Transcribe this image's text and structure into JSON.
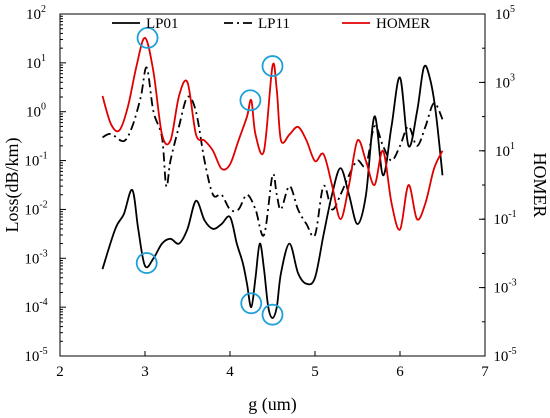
{
  "chart_data": {
    "type": "line",
    "xlabel": "g (um)",
    "ylabel": "Loss(dB/km)",
    "ylabel_right": "HOMER",
    "x_ticks": [
      "2",
      "3",
      "4",
      "5",
      "6",
      "7"
    ],
    "xlim": [
      2,
      7
    ],
    "ylim_log10": [
      -5,
      2
    ],
    "y2lim_log10": [
      -5,
      5
    ],
    "y_log_scale": true,
    "y_tick_base": "10",
    "y_tick_exponents": [
      "-5",
      "-4",
      "-3",
      "-2",
      "-1",
      "0",
      "1",
      "2"
    ],
    "y2_tick_exponents": [
      "-5",
      "-3",
      "-1",
      "1",
      "3",
      "5"
    ],
    "legend": {
      "placement": "top",
      "entries": [
        {
          "label": "LP01",
          "color": "#000000",
          "style": "solid"
        },
        {
          "label": "LP11",
          "color": "#000000",
          "style": "dash-dot"
        },
        {
          "label": "HOMER",
          "color": "#e00000",
          "style": "solid"
        }
      ]
    },
    "series": [
      {
        "name": "LP01",
        "axis": "left",
        "color": "#000000",
        "style": "solid",
        "x": [
          2.5,
          2.65,
          2.75,
          2.85,
          2.92,
          3.0,
          3.1,
          3.2,
          3.3,
          3.4,
          3.5,
          3.6,
          3.7,
          3.8,
          3.9,
          4.0,
          4.08,
          4.15,
          4.2,
          4.25,
          4.3,
          4.35,
          4.4,
          4.45,
          4.5,
          4.55,
          4.6,
          4.7,
          4.8,
          4.9,
          5.0,
          5.1,
          5.2,
          5.3,
          5.4,
          5.5,
          5.6,
          5.7,
          5.8,
          5.9,
          6.0,
          6.1,
          6.2,
          6.28,
          6.35,
          6.42,
          6.5
        ],
        "y": [
          0.0006,
          0.004,
          0.008,
          0.025,
          0.004,
          0.0007,
          0.001,
          0.002,
          0.0025,
          0.002,
          0.004,
          0.015,
          0.006,
          0.004,
          0.005,
          0.007,
          0.002,
          0.0008,
          0.0003,
          0.0001,
          0.0004,
          0.002,
          0.0006,
          0.0001,
          6e-05,
          0.0001,
          0.0005,
          0.002,
          0.0005,
          0.0003,
          0.0004,
          0.003,
          0.02,
          0.07,
          0.02,
          0.005,
          0.02,
          0.8,
          0.05,
          0.5,
          5.0,
          0.2,
          1.0,
          8.0,
          5.0,
          1.0,
          0.05
        ]
      },
      {
        "name": "LP11",
        "axis": "left",
        "color": "#000000",
        "style": "dash-dot",
        "x": [
          2.5,
          2.6,
          2.75,
          2.85,
          2.95,
          3.02,
          3.1,
          3.2,
          3.25,
          3.3,
          3.4,
          3.5,
          3.6,
          3.7,
          3.8,
          3.9,
          4.0,
          4.1,
          4.2,
          4.3,
          4.4,
          4.5,
          4.55,
          4.6,
          4.7,
          4.8,
          4.9,
          5.0,
          5.1,
          5.2,
          5.3,
          5.4,
          5.5,
          5.6,
          5.7,
          5.8,
          5.9,
          6.0,
          6.1,
          6.2,
          6.3,
          6.4,
          6.5
        ],
        "y": [
          0.3,
          0.35,
          0.25,
          0.5,
          2.0,
          8.0,
          1.0,
          0.3,
          0.03,
          0.1,
          0.5,
          2.0,
          1.0,
          0.1,
          0.02,
          0.02,
          0.01,
          0.01,
          0.02,
          0.01,
          0.003,
          0.05,
          0.02,
          0.01,
          0.03,
          0.01,
          0.005,
          0.003,
          0.03,
          0.01,
          0.02,
          0.05,
          0.1,
          0.08,
          0.5,
          0.2,
          0.1,
          0.2,
          0.5,
          0.2,
          0.5,
          1.5,
          0.7
        ]
      },
      {
        "name": "HOMER",
        "axis": "right",
        "color": "#e00000",
        "style": "solid",
        "x": [
          2.5,
          2.6,
          2.7,
          2.8,
          2.9,
          3.0,
          3.1,
          3.2,
          3.3,
          3.4,
          3.5,
          3.6,
          3.7,
          3.8,
          3.9,
          4.0,
          4.1,
          4.2,
          4.25,
          4.3,
          4.4,
          4.5,
          4.55,
          4.6,
          4.7,
          4.8,
          4.9,
          5.0,
          5.1,
          5.2,
          5.3,
          5.4,
          5.5,
          5.6,
          5.7,
          5.8,
          5.9,
          6.0,
          6.1,
          6.2,
          6.3,
          6.4,
          6.5
        ],
        "y": [
          400,
          60,
          40,
          200,
          3000,
          20000,
          2000,
          30,
          20,
          400,
          1000,
          30,
          20,
          10,
          3,
          4,
          20,
          100,
          300,
          30,
          10,
          3000,
          600,
          20,
          30,
          50,
          20,
          5,
          8,
          1,
          0.1,
          1,
          20,
          5,
          1,
          10,
          0.3,
          0.05,
          1,
          0.1,
          0.3,
          3,
          10
        ]
      }
    ],
    "highlight_circles": [
      {
        "series": "HOMER",
        "x": 3.03,
        "y": 20000
      },
      {
        "series": "HOMER",
        "x": 4.24,
        "y": 300
      },
      {
        "series": "HOMER",
        "x": 4.5,
        "y": 3000
      },
      {
        "series": "LP01",
        "x": 3.02,
        "y": 0.0008
      },
      {
        "series": "LP01",
        "x": 4.25,
        "y": 0.00012
      },
      {
        "series": "LP01",
        "x": 4.5,
        "y": 7e-05
      }
    ],
    "highlight_color": "#1ea0d8"
  }
}
